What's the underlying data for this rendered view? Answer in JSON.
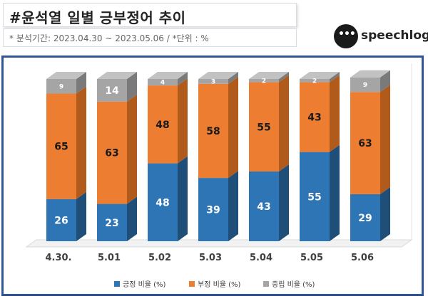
{
  "header": {
    "title": "#윤석열 일별 긍부정어 추이",
    "subtitle": "* 분석기간: 2023.04.30 ~ 2023.05.06 / *단위 : %"
  },
  "logo": {
    "text": "speechlog",
    "dots": "•••"
  },
  "chart_data": {
    "type": "bar",
    "stacked": true,
    "categories": [
      "4.30.",
      "5.01",
      "5.02",
      "5.03",
      "5.04",
      "5.05",
      "5.06"
    ],
    "series": [
      {
        "name": "긍정 비율 (%)",
        "values": [
          26,
          23,
          48,
          39,
          43,
          55,
          29
        ],
        "color": "#2e75b6",
        "side_color": "#1f4e79",
        "top_color": "#3f7fc3"
      },
      {
        "name": "부정 비율 (%)",
        "values": [
          65,
          63,
          48,
          58,
          55,
          43,
          63
        ],
        "color": "#ed7d31",
        "side_color": "#b05a1c",
        "top_color": "#f19858"
      },
      {
        "name": "중립 비율 (%)",
        "values": [
          9,
          14,
          4,
          3,
          2,
          2,
          9
        ],
        "color": "#a5a5a5",
        "side_color": "#7a7a7a",
        "top_color": "#c2c2c2"
      }
    ],
    "ylim": [
      0,
      100
    ],
    "legend_position": "bottom",
    "grid": false
  }
}
